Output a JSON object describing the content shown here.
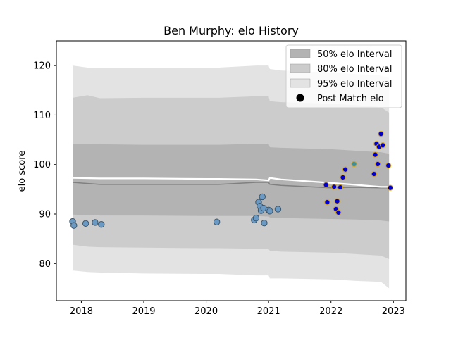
{
  "chart_data": {
    "type": "scatter",
    "title": "Ben Murphy: elo History",
    "xlabel": "",
    "ylabel": "elo score",
    "xlim": [
      2017.6,
      2023.2
    ],
    "ylim": [
      72.5,
      125
    ],
    "x_ticks": [
      2018,
      2019,
      2020,
      2021,
      2022,
      2023
    ],
    "x_tick_labels": [
      "2018",
      "2019",
      "2020",
      "2021",
      "2022",
      "2023"
    ],
    "y_ticks": [
      80,
      90,
      100,
      110,
      120
    ],
    "y_tick_labels": [
      "80",
      "90",
      "100",
      "110",
      "120"
    ],
    "grid": false,
    "legend_position": "top-right",
    "colors": {
      "band_95": "#e3e3e3",
      "band_80": "#cccccc",
      "band_50": "#b3b3b3",
      "mean_line": "#808080",
      "rating_line": "#ffffff",
      "point_early": "#6a9ac4",
      "point_early_edge": "#3d5568",
      "point_recent": "#0000cc",
      "point_recent_edge": "#d4a017",
      "point_teal": "#3f8f9a"
    },
    "legend": [
      {
        "label": "50% elo Interval",
        "swatch": "band_50"
      },
      {
        "label": "80% elo Interval",
        "swatch": "band_80"
      },
      {
        "label": "95% elo Interval",
        "swatch": "band_95"
      },
      {
        "label": "Post Match elo",
        "swatch": "point"
      }
    ],
    "bands": {
      "x": [
        2017.86,
        2018.1,
        2018.3,
        2019.0,
        2020.0,
        2020.2,
        2020.8,
        2021.0,
        2021.02,
        2021.2,
        2022.0,
        2022.4,
        2022.8,
        2022.93
      ],
      "lower95": [
        78.6,
        78.3,
        78.2,
        78.0,
        77.9,
        77.9,
        77.6,
        77.6,
        77.0,
        77.0,
        76.8,
        76.5,
        76.3,
        75.0
      ],
      "upper95": [
        120.0,
        119.6,
        119.5,
        119.6,
        119.6,
        119.6,
        120.0,
        120.0,
        119.3,
        119.0,
        118.6,
        118.3,
        118.0,
        117.5
      ],
      "lower80": [
        83.8,
        83.4,
        83.3,
        83.2,
        83.1,
        83.1,
        83.0,
        82.9,
        82.6,
        82.4,
        82.2,
        81.9,
        81.6,
        80.9
      ],
      "upper80": [
        113.5,
        114.0,
        113.4,
        113.5,
        113.5,
        113.5,
        113.8,
        113.8,
        112.8,
        112.6,
        112.3,
        112.0,
        111.6,
        110.5
      ],
      "lower50": [
        89.9,
        89.8,
        89.7,
        89.7,
        89.6,
        89.6,
        89.6,
        89.5,
        89.3,
        89.2,
        89.0,
        88.9,
        88.7,
        88.5
      ],
      "upper50": [
        104.2,
        104.2,
        104.1,
        104.0,
        104.0,
        104.0,
        104.2,
        104.2,
        103.5,
        103.4,
        103.1,
        102.8,
        102.5,
        102.2
      ]
    },
    "mean_line": {
      "x": [
        2017.86,
        2018.3,
        2019.0,
        2020.0,
        2020.2,
        2020.8,
        2021.0,
        2021.02,
        2021.2,
        2022.0,
        2022.4,
        2022.8,
        2022.93
      ],
      "y": [
        96.4,
        96.0,
        96.0,
        96.0,
        96.0,
        96.4,
        96.4,
        96.0,
        95.8,
        95.3,
        95.4,
        95.3,
        95.3
      ]
    },
    "rating_line": {
      "x": [
        2017.86,
        2018.3,
        2019.0,
        2020.0,
        2020.2,
        2020.8,
        2021.0,
        2021.02,
        2021.2,
        2022.0,
        2022.4,
        2022.8,
        2022.93
      ],
      "y": [
        97.3,
        97.2,
        97.2,
        97.1,
        97.1,
        97.0,
        96.8,
        97.3,
        97.0,
        96.3,
        95.9,
        95.5,
        95.5
      ]
    },
    "series": [
      {
        "group": "early",
        "x": [
          2017.86,
          2017.88,
          2018.07,
          2018.22,
          2018.32,
          2020.17,
          2020.77,
          2020.8,
          2020.84,
          2020.86,
          2020.88,
          2020.9,
          2020.92,
          2020.93,
          2021.0,
          2021.02,
          2021.15
        ],
        "y": [
          88.5,
          87.7,
          88.1,
          88.3,
          87.9,
          88.4,
          88.8,
          89.2,
          92.4,
          91.6,
          90.7,
          93.5,
          91.2,
          88.2,
          90.8,
          90.6,
          91.0
        ]
      },
      {
        "group": "recent",
        "x": [
          2021.92,
          2021.94,
          2022.05,
          2022.08,
          2022.1,
          2022.12,
          2022.15,
          2022.19,
          2022.23,
          2022.69,
          2022.71,
          2022.73,
          2022.75,
          2022.77,
          2022.8,
          2022.83,
          2022.92,
          2022.95
        ],
        "y": [
          95.9,
          92.4,
          95.5,
          91.0,
          92.6,
          90.3,
          95.4,
          97.4,
          99.0,
          98.1,
          102.0,
          104.2,
          100.1,
          103.6,
          106.2,
          103.9,
          99.8,
          95.3
        ]
      },
      {
        "group": "teal",
        "x": [
          2022.37
        ],
        "y": [
          100.1
        ]
      }
    ]
  }
}
